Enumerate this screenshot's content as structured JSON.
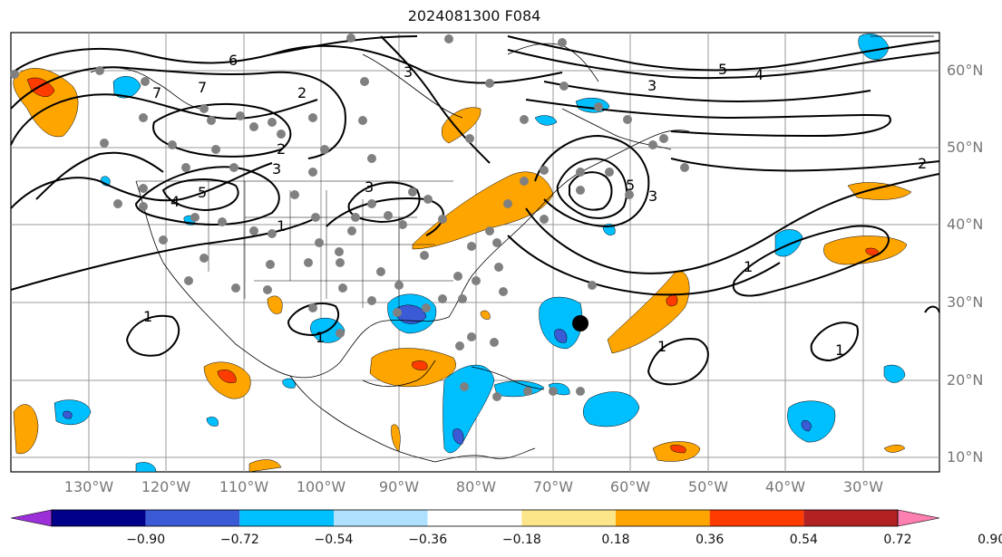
{
  "title": "2024081300 F084",
  "lat_labels": [
    "60°N",
    "50°N",
    "40°N",
    "30°N",
    "20°N",
    "10°N"
  ],
  "lon_labels": [
    "130°W",
    "120°W",
    "110°W",
    "100°W",
    "90°W",
    "80°W",
    "70°W",
    "60°W",
    "50°W",
    "40°W",
    "30°W"
  ],
  "contour_labels": [
    "6",
    "7",
    "3",
    "4",
    "5",
    "2",
    "1"
  ],
  "colorbar": {
    "ticks": [
      "−0.90",
      "−0.72",
      "−0.54",
      "−0.36",
      "−0.18",
      "0.18",
      "0.36",
      "0.54",
      "0.72",
      "0.90"
    ],
    "colors": [
      "#9b30d9",
      "#00008b",
      "#3b5bd6",
      "#00bfff",
      "#aee0ff",
      "#ffffff",
      "#fde68a",
      "#ffa500",
      "#ff3c00",
      "#b22222",
      "#ff7fb0"
    ]
  },
  "colors": {
    "pos_low": "#ffa500",
    "pos_mid": "#ff3c00",
    "neg_low": "#00bfff",
    "neg_mid": "#3b5bd6",
    "station": "#808080",
    "marker": "#000000"
  }
}
